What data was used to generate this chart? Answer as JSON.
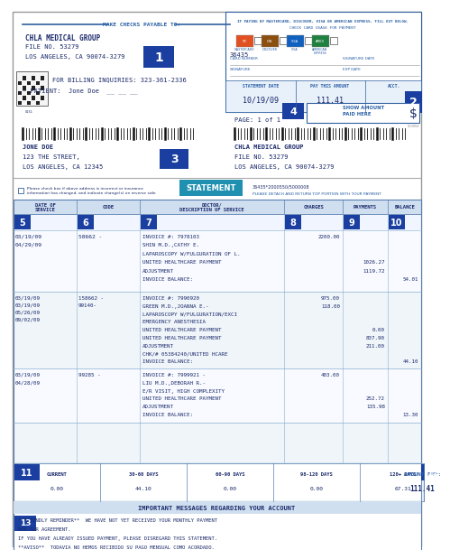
{
  "bg_color": "#ffffff",
  "blue_label_color": "#1a3fa0",
  "header_text_color": "#2a5fa5",
  "text_color": "#1a2a6a",
  "checks_payable": "MAKE CHECKS PAYABLE TO:",
  "company_name": "CHLA MEDICAL GROUP",
  "file_no": "FILE NO. 53279",
  "address": "LOS ANGELES, CA 90074-3279",
  "acct_num": "36435",
  "billing_phone": "FOR BILLING INQUIRIES: 323-361-2336",
  "patient_label": "~ PATIENT:  Jone Doe",
  "statement_date_label": "STATEMENT DATE",
  "statement_date": "10/19/09",
  "pay_amount_label": "PAY THIS AMOUNT",
  "pay_amount": "111.41",
  "acct_label": "ACCT.",
  "page_label": "PAGE: 1 of 1",
  "show_amount_label": "SHOW AMOUNT\nPAID HERE",
  "dollar_sign": "$",
  "patient_address_name": "JONE DOE",
  "patient_address_street": "123 THE STREET,",
  "patient_address_city": "LOS ANGELES, CA 12345",
  "return_company": "CHLA MEDICAL GROUP",
  "return_file": "FILE NO. 53279",
  "return_address": "LOS ANGELES, CA 90074-3279",
  "barcode_ref": "36435*2000550/5000008",
  "detach_note": "PLEASE DETACH AND RETURN TOP PORTION WITH YOUR PAYMENT",
  "checkbox_note": "Please check box if above address is incorrect or insurance\ninformation has changed, and indicate change(s) on reverse side",
  "statement_btn": "STATEMENT",
  "col_headers": [
    "DATE OF\nSERVICE",
    "CODE",
    "DOCTOR/\nDESCRIPTION OF SERVICE",
    "CHARGES",
    "PAYMENTS",
    "BALANCE"
  ],
  "aging_headers": [
    "CURRENT",
    "30-60 DAYS",
    "60-90 DAYS",
    "98-120 DAYS",
    "120+ DAYS"
  ],
  "aging_values": [
    "0.00",
    "44.10",
    "0.00",
    "0.00",
    "67.31"
  ],
  "amount_due_label": "AMOUNT DUE:",
  "amount_due": "111.41",
  "important_header": "IMPORTANT MESSAGES REGARDING YOUR ACCOUNT",
  "messages": [
    "**FRIENDLY REMINDER**  WE HAVE NOT YET RECEIVED YOUR MONTHLY PAYMENT",
    "PER OUR AGREEMENT.",
    "IF YOU HAVE ALREADY ISSUED PAYMENT, PLEASE DISREGARD THIS STATEMENT.",
    "**AVISO**  TODAVIA NO HEMOS RECIBIDO SU PAGO MENSUAL COMO ACORDADO."
  ],
  "cc_header1": "IF PAYING BY MASTERCARD, DISCOVER, VISA OR AMERICAN EXPRESS, FILL OUT BELOW.",
  "cc_header2": "CHECK CARD USAGE FOR PAYMENT",
  "cc_labels": [
    "MASTERCARD",
    "DISCOVER",
    "VISA",
    "AMERICAN EXPRESS"
  ],
  "cc_colors": [
    "#e05020",
    "#8B5010",
    "#1060c0",
    "#208040"
  ],
  "field_labels": [
    "CARD NUMBER",
    "SIGNATURE DATE",
    "SIGNATURE",
    "EXP DATE"
  ]
}
